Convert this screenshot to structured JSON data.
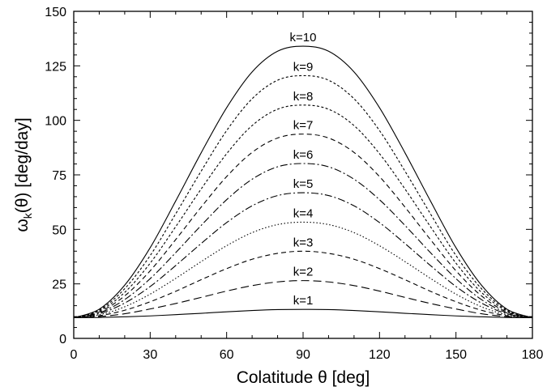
{
  "chart_data": {
    "type": "line",
    "title": "",
    "xlabel": "Colatitude θ [deg]",
    "ylabel_main": "ω",
    "ylabel_sub": "k",
    "ylabel_rest": "(θ) [deg/day]",
    "xlim": [
      0,
      180
    ],
    "ylim": [
      0,
      150
    ],
    "xticks": [
      0,
      30,
      60,
      90,
      120,
      150,
      180
    ],
    "yticks": [
      0,
      25,
      50,
      75,
      100,
      125,
      150
    ],
    "grid": false,
    "x": [
      0,
      10,
      20,
      30,
      40,
      50,
      60,
      70,
      80,
      90,
      100,
      110,
      120,
      130,
      140,
      150,
      160,
      170,
      180
    ],
    "series": [
      {
        "name": "k=1",
        "label": "k=1",
        "style": "solid",
        "values": [
          9.5,
          9.6,
          9.9,
          10.3,
          10.9,
          11.5,
          12.2,
          12.8,
          13.2,
          13.3,
          13.2,
          12.8,
          12.2,
          11.5,
          10.9,
          10.3,
          9.9,
          9.6,
          9.5
        ]
      },
      {
        "name": "k=2",
        "label": "k=2",
        "style": "longdash",
        "values": [
          9.5,
          10.0,
          11.3,
          13.5,
          16.0,
          18.8,
          21.7,
          24.2,
          25.9,
          26.5,
          25.9,
          24.2,
          21.7,
          18.8,
          16.0,
          13.5,
          11.3,
          10.0,
          9.5
        ]
      },
      {
        "name": "k=3",
        "label": "k=3",
        "style": "dash",
        "values": [
          9.5,
          10.4,
          12.9,
          16.8,
          21.6,
          26.9,
          32.0,
          36.3,
          39.0,
          40.0,
          39.0,
          36.3,
          32.0,
          26.9,
          21.6,
          16.8,
          12.9,
          10.4,
          9.5
        ]
      },
      {
        "name": "k=4",
        "label": "k=4",
        "style": "dot",
        "values": [
          9.5,
          10.8,
          14.5,
          20.3,
          27.5,
          35.2,
          42.5,
          48.5,
          52.2,
          53.3,
          52.2,
          48.5,
          42.5,
          35.2,
          27.5,
          20.3,
          14.5,
          10.8,
          9.5
        ]
      },
      {
        "name": "k=5",
        "label": "k=5",
        "style": "dashdot",
        "values": [
          9.5,
          11.3,
          16.2,
          23.8,
          33.4,
          43.5,
          53.1,
          60.8,
          65.5,
          66.8,
          65.5,
          60.8,
          53.1,
          43.5,
          33.4,
          23.8,
          16.2,
          11.3,
          9.5
        ]
      },
      {
        "name": "k=6",
        "label": "k=6",
        "style": "dashdot",
        "values": [
          9.5,
          11.7,
          17.8,
          27.4,
          39.3,
          51.8,
          63.6,
          73.0,
          78.7,
          80.2,
          78.7,
          73.0,
          63.6,
          51.8,
          39.3,
          27.4,
          17.8,
          11.7,
          9.5
        ]
      },
      {
        "name": "k=7",
        "label": "k=7",
        "style": "dash",
        "values": [
          9.5,
          12.1,
          19.5,
          31.0,
          45.3,
          60.2,
          74.2,
          85.3,
          91.9,
          93.7,
          91.9,
          85.3,
          74.2,
          60.2,
          45.3,
          31.0,
          19.5,
          12.1,
          9.5
        ]
      },
      {
        "name": "k=8",
        "label": "k=8",
        "style": "shortdash",
        "values": [
          9.5,
          12.6,
          21.1,
          34.5,
          51.2,
          68.5,
          84.7,
          97.6,
          105.1,
          107.0,
          105.1,
          97.6,
          84.7,
          68.5,
          51.2,
          34.5,
          21.1,
          12.6,
          9.5
        ]
      },
      {
        "name": "k=9",
        "label": "k=9",
        "style": "shortdash",
        "values": [
          9.5,
          13.0,
          22.8,
          38.0,
          57.1,
          76.7,
          95.3,
          109.9,
          118.4,
          120.5,
          118.4,
          109.9,
          95.3,
          76.7,
          57.1,
          38.0,
          22.8,
          13.0,
          9.5
        ]
      },
      {
        "name": "k=10",
        "label": "k=10",
        "style": "solid",
        "values": [
          9.5,
          13.4,
          24.4,
          41.6,
          63.0,
          85.1,
          105.8,
          122.2,
          131.7,
          134.0,
          131.7,
          122.2,
          105.8,
          85.1,
          63.0,
          41.6,
          24.4,
          13.4,
          9.5
        ]
      }
    ]
  }
}
